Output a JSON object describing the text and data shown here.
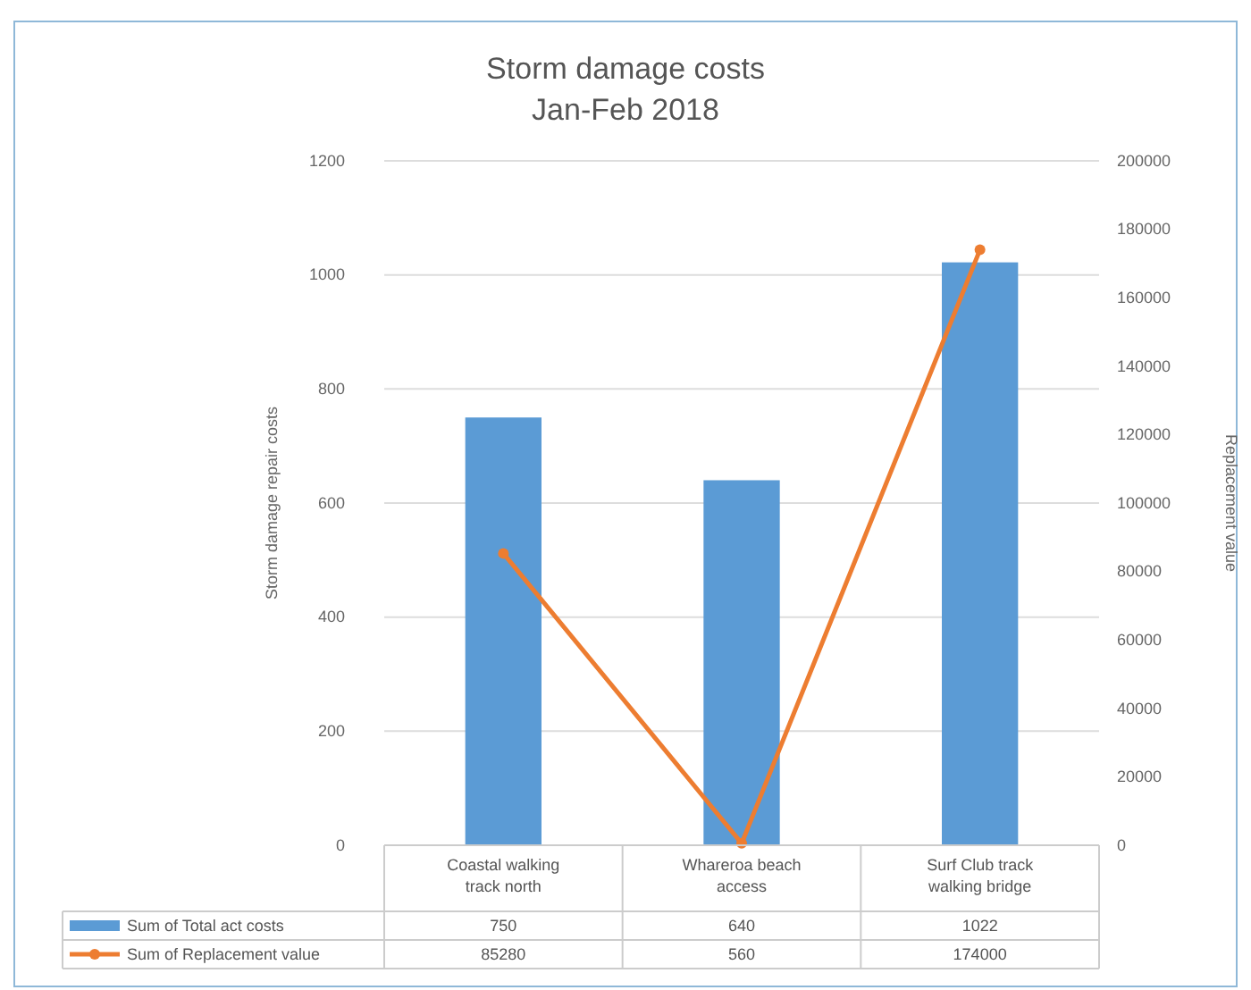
{
  "chart_data": {
    "type": "bar",
    "title": "Storm damage costs",
    "subtitle": "Jan-Feb 2018",
    "ylabel": "Storm damage repair costs",
    "y2label": "Replacement value",
    "categories": [
      "Coastal walking track north",
      "Whareroa beach access",
      "Surf Club track walking bridge"
    ],
    "series": [
      {
        "name": "Sum of Total act costs",
        "color": "#5b9bd5",
        "values": [
          750,
          640,
          1022
        ]
      },
      {
        "name": "Sum of Replacement value",
        "type": "line",
        "axis": "y2",
        "color": "#ed7d31",
        "marker": "circle",
        "values": [
          85280,
          560,
          174000
        ]
      }
    ],
    "ylim": [
      0,
      1200
    ],
    "yticks": [
      0,
      200,
      400,
      600,
      800,
      1000,
      1200
    ],
    "y2lim": [
      0,
      200000
    ],
    "y2ticks": [
      0,
      20000,
      40000,
      60000,
      80000,
      100000,
      120000,
      140000,
      160000,
      180000,
      200000
    ],
    "grid": "y",
    "legend": "bottom",
    "data_labels": true
  }
}
